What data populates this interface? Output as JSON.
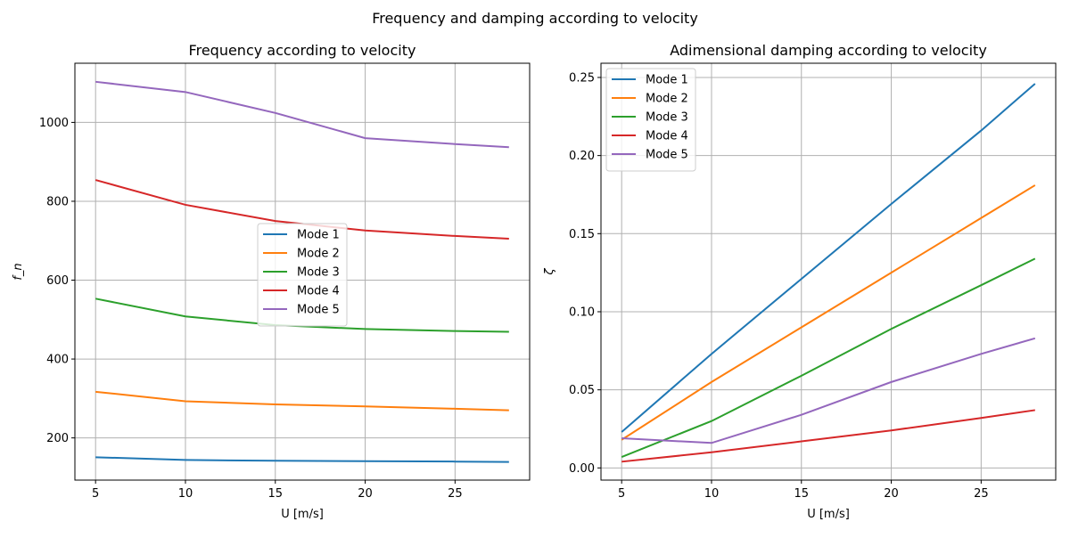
{
  "figure": {
    "suptitle": "Frequency and damping according to velocity"
  },
  "chart_data": [
    {
      "type": "line",
      "title": "Frequency according to velocity",
      "xlabel": "U [m/s]",
      "ylabel": "f_n",
      "x": [
        5,
        10,
        15,
        20,
        25,
        28
      ],
      "xlim": [
        3.85,
        29.15
      ],
      "ylim": [
        93,
        1150
      ],
      "xticks": [
        5,
        10,
        15,
        20,
        25
      ],
      "yticks": [
        200,
        400,
        600,
        800,
        1000
      ],
      "ytick_labels": [
        "200",
        "400",
        "600",
        "800",
        "1000"
      ],
      "grid": true,
      "legend_placement": "center",
      "series": [
        {
          "name": "Mode 1",
          "color": "#1f77b4",
          "values": [
            151,
            144,
            142,
            141,
            140,
            139
          ]
        },
        {
          "name": "Mode 2",
          "color": "#ff7f0e",
          "values": [
            317,
            293,
            285,
            280,
            274,
            270
          ]
        },
        {
          "name": "Mode 3",
          "color": "#2ca02c",
          "values": [
            553,
            508,
            486,
            476,
            471,
            469
          ]
        },
        {
          "name": "Mode 4",
          "color": "#d62728",
          "values": [
            854,
            791,
            750,
            726,
            712,
            705
          ]
        },
        {
          "name": "Mode 5",
          "color": "#9467bd",
          "values": [
            1103,
            1077,
            1024,
            960,
            945,
            937
          ]
        }
      ]
    },
    {
      "type": "line",
      "title": "Adimensional damping according to velocity",
      "xlabel": "U [m/s]",
      "ylabel": "ζ",
      "x": [
        5,
        10,
        15,
        20,
        25,
        28
      ],
      "xlim": [
        3.85,
        29.15
      ],
      "ylim": [
        -0.0078,
        0.2591
      ],
      "xticks": [
        5,
        10,
        15,
        20,
        25
      ],
      "yticks": [
        0.0,
        0.05,
        0.1,
        0.15,
        0.2,
        0.25
      ],
      "ytick_labels": [
        "0.00",
        "0.05",
        "0.10",
        "0.15",
        "0.20",
        "0.25"
      ],
      "grid": true,
      "legend_placement": "upper left",
      "series": [
        {
          "name": "Mode 1",
          "color": "#1f77b4",
          "values": [
            0.023,
            0.073,
            0.121,
            0.169,
            0.216,
            0.246
          ]
        },
        {
          "name": "Mode 2",
          "color": "#ff7f0e",
          "values": [
            0.018,
            0.055,
            0.09,
            0.125,
            0.16,
            0.181
          ]
        },
        {
          "name": "Mode 3",
          "color": "#2ca02c",
          "values": [
            0.007,
            0.03,
            0.059,
            0.089,
            0.117,
            0.134
          ]
        },
        {
          "name": "Mode 4",
          "color": "#d62728",
          "values": [
            0.004,
            0.01,
            0.017,
            0.024,
            0.032,
            0.037
          ]
        },
        {
          "name": "Mode 5",
          "color": "#9467bd",
          "values": [
            0.019,
            0.016,
            0.034,
            0.055,
            0.073,
            0.083
          ]
        }
      ]
    }
  ]
}
